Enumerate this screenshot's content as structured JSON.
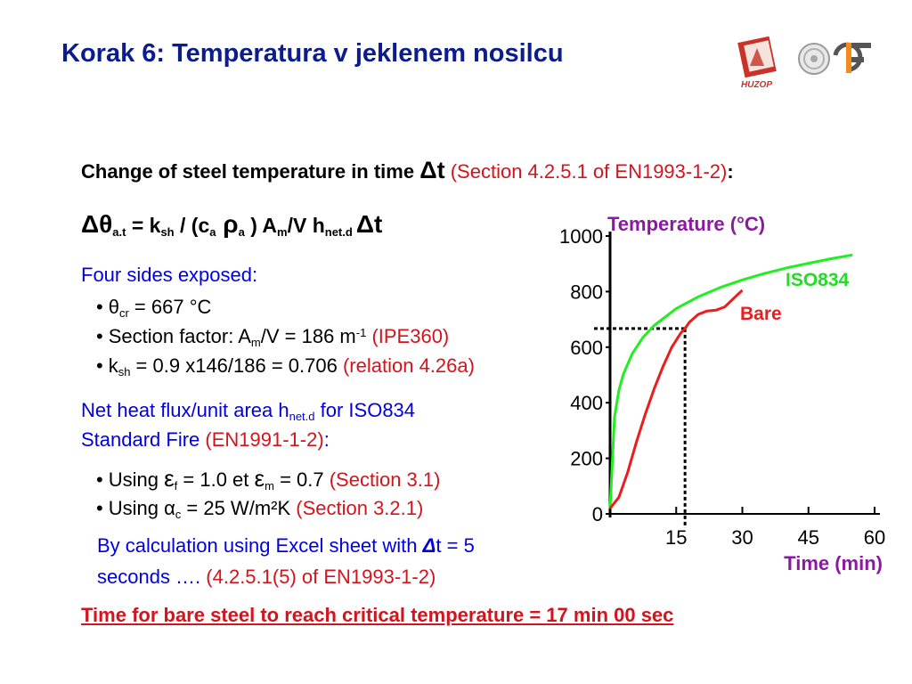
{
  "slide": {
    "title": "Korak 6: Temperatura v jeklenem nosilcu",
    "logo_text": "HUZOP"
  },
  "heading": {
    "text": "Change of steel temperature in time ",
    "symbol": "Δt",
    "ref": " (Section 4.2.5.1 of EN1993-1-2)",
    "colon": ":"
  },
  "formula": {
    "delta_theta": "Δθ",
    "sub_at": "a.t",
    "eq": " = k",
    "sub_sh": "sh",
    "mid1": " / (c",
    "sub_a1": "a",
    "rho": " ρ",
    "sub_a2": "a",
    "mid2": " ) A",
    "sub_m": "m",
    "mid3": "/V  h",
    "sub_net": "net.d",
    "end": "Δt"
  },
  "exposure": {
    "label": "Four sides exposed:",
    "b1_pre": "θ",
    "b1_sub": "cr",
    "b1_val": " = 667 °C",
    "b2_pre": "Section factor: A",
    "b2_sub": "m",
    "b2_mid": "/V = 186 m",
    "b2_sup": "-1",
    "b2_ref": " (IPE360)",
    "b3_pre": "k",
    "b3_sub": "sh",
    "b3_val": " = 0.9 x146/186 = 0.706",
    "b3_ref": " (relation 4.26a)"
  },
  "heatflux": {
    "line1_pre": "Net heat flux/unit area h",
    "line1_sub": "net.d",
    "line1_post": " for ISO834",
    "line2_pre": "Standard Fire ",
    "line2_ref": "(EN1991-1-2)",
    "line2_colon": ":",
    "b1_pre": "Using ",
    "b1_eps1": "ε",
    "b1_sub1": "f",
    "b1_mid": " = 1.0 et ",
    "b1_eps2": "ε",
    "b1_sub2": "m",
    "b1_val": " = 0.7",
    "b1_ref": " (Section 3.1)",
    "b2_pre": "Using ",
    "b2_alpha": "α",
    "b2_sub": "c",
    "b2_val": " = 25 W/m²K",
    "b2_ref": " (Section 3.2.1)"
  },
  "calc": {
    "line1_pre": "By calculation using Excel sheet with ",
    "line1_sym": "Δ",
    "line1_post": "t = 5",
    "line2_pre": "seconds …. ",
    "line2_ref": "(4.2.5.1(5) of EN1993-1-2)"
  },
  "conclusion": "Time for bare steel to reach critical temperature = 17 min 00 sec",
  "chart_data": {
    "type": "line",
    "ylabel": "Temperature (°C)",
    "xlabel": "Time (min)",
    "xlim": [
      0,
      60
    ],
    "ylim": [
      0,
      1000
    ],
    "x_ticks": [
      15,
      30,
      45,
      60
    ],
    "y_ticks": [
      0,
      200,
      400,
      600,
      800,
      1000
    ],
    "series": [
      {
        "name": "ISO834",
        "color": "#22ee22",
        "x": [
          0,
          1,
          2,
          3,
          5,
          7.5,
          10,
          15,
          20,
          25,
          30,
          35,
          40,
          45,
          50,
          55
        ],
        "y": [
          20,
          349,
          445,
          502,
          576,
          636,
          678,
          739,
          781,
          815,
          842,
          865,
          885,
          902,
          918,
          932
        ]
      },
      {
        "name": "Bare",
        "color": "#ee1c1c",
        "x": [
          0,
          2,
          4,
          6,
          8,
          10,
          12,
          14,
          16,
          17,
          18,
          20,
          22,
          24,
          26,
          28,
          30
        ],
        "y": [
          20,
          60,
          150,
          260,
          360,
          450,
          530,
          600,
          650,
          667,
          690,
          718,
          730,
          733,
          745,
          775,
          805
        ]
      }
    ],
    "critical": {
      "temperature": 667,
      "time": 17
    }
  }
}
